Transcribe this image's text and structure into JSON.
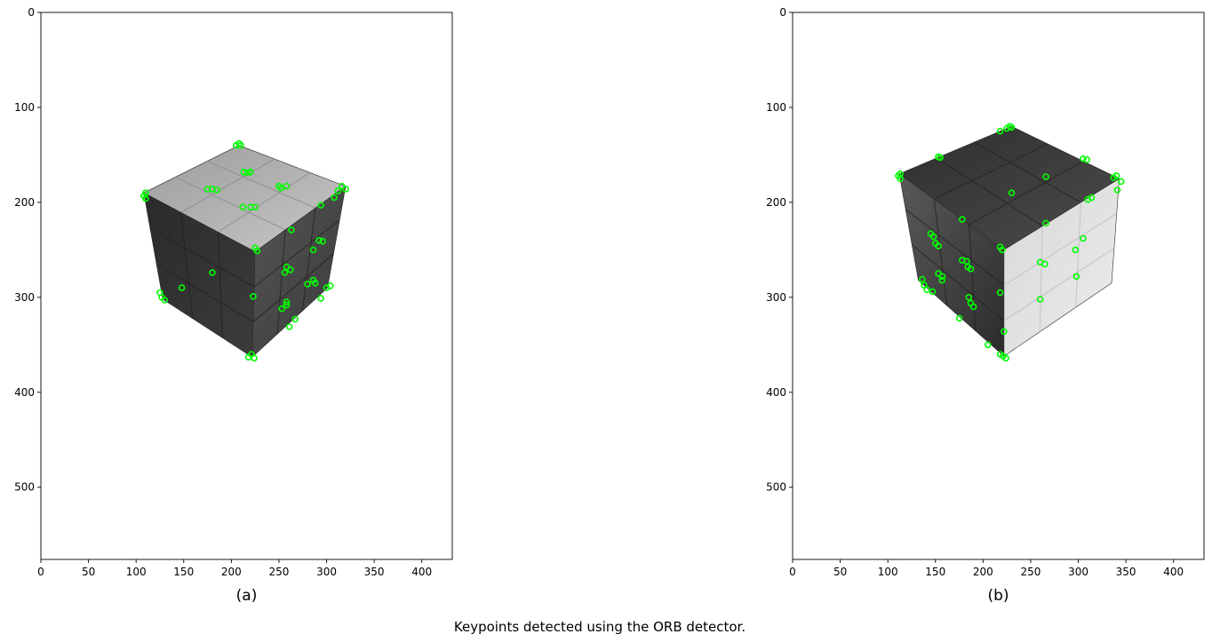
{
  "figure": {
    "caption": "Keypoints detected using the ORB detector.",
    "colors": {
      "keypoint": "#00ff00",
      "cube_light": "#b4b4b4",
      "cube_dark": "#3a3a3a",
      "cube_mid": "#4a4a4a",
      "background": "#ffffff",
      "axis": "#000000"
    },
    "panels": [
      {
        "label": "(a)",
        "x_ticks": [
          0,
          50,
          100,
          150,
          200,
          250,
          300,
          350,
          400
        ],
        "y_ticks": [
          0,
          100,
          200,
          300,
          400,
          500
        ],
        "x_range": [
          0,
          432
        ],
        "y_range": [
          576,
          0
        ],
        "cube": {
          "top_face": [
            [
              208,
              140
            ],
            [
              320,
              183
            ],
            [
              225,
              252
            ],
            [
              108,
              190
            ]
          ],
          "left_face": [
            [
              108,
              190
            ],
            [
              225,
              252
            ],
            [
              222,
              363
            ],
            [
              128,
              302
            ]
          ],
          "right_face": [
            [
              225,
              252
            ],
            [
              320,
              183
            ],
            [
              301,
              290
            ],
            [
              222,
              363
            ]
          ]
        },
        "keypoints": [
          [
            205,
            140
          ],
          [
            210,
            140
          ],
          [
            208,
            138
          ],
          [
            213,
            168
          ],
          [
            220,
            168
          ],
          [
            217,
            169
          ],
          [
            175,
            186
          ],
          [
            185,
            187
          ],
          [
            180,
            186
          ],
          [
            212,
            205
          ],
          [
            220,
            205
          ],
          [
            225,
            205
          ],
          [
            252,
            185
          ],
          [
            258,
            183
          ],
          [
            250,
            183
          ],
          [
            316,
            183
          ],
          [
            320,
            186
          ],
          [
            312,
            188
          ],
          [
            308,
            195
          ],
          [
            294,
            203
          ],
          [
            110,
            190
          ],
          [
            110,
            196
          ],
          [
            108,
            193
          ],
          [
            225,
            248
          ],
          [
            227,
            251
          ],
          [
            263,
            229
          ],
          [
            292,
            240
          ],
          [
            296,
            241
          ],
          [
            286,
            250
          ],
          [
            258,
            268
          ],
          [
            262,
            271
          ],
          [
            256,
            274
          ],
          [
            148,
            290
          ],
          [
            180,
            274
          ],
          [
            127,
            300
          ],
          [
            130,
            303
          ],
          [
            125,
            295
          ],
          [
            286,
            282
          ],
          [
            288,
            285
          ],
          [
            280,
            286
          ],
          [
            223,
            299
          ],
          [
            300,
            290
          ],
          [
            304,
            288
          ],
          [
            258,
            305
          ],
          [
            258,
            308
          ],
          [
            253,
            312
          ],
          [
            294,
            301
          ],
          [
            267,
            323
          ],
          [
            261,
            331
          ],
          [
            218,
            363
          ],
          [
            224,
            364
          ],
          [
            221,
            360
          ]
        ]
      },
      {
        "label": "(b)",
        "x_ticks": [
          0,
          50,
          100,
          150,
          200,
          250,
          300,
          350,
          400
        ],
        "y_ticks": [
          0,
          100,
          200,
          300,
          400,
          500
        ],
        "x_range": [
          0,
          432
        ],
        "y_range": [
          576,
          0
        ],
        "cube": {
          "top_face": [
            [
              230,
              120
            ],
            [
              343,
              175
            ],
            [
              222,
              250
            ],
            [
              112,
              170
            ]
          ],
          "left_face": [
            [
              112,
              170
            ],
            [
              222,
              250
            ],
            [
              222,
              362
            ],
            [
              132,
              282
            ]
          ],
          "right_face": [
            [
              222,
              250
            ],
            [
              343,
              175
            ],
            [
              335,
              285
            ],
            [
              222,
              362
            ]
          ]
        },
        "keypoints": [
          [
            225,
            122
          ],
          [
            230,
            121
          ],
          [
            218,
            125
          ],
          [
            228,
            120
          ],
          [
            153,
            152
          ],
          [
            155,
            153
          ],
          [
            305,
            154
          ],
          [
            309,
            155
          ],
          [
            266,
            173
          ],
          [
            340,
            172
          ],
          [
            345,
            178
          ],
          [
            337,
            174
          ],
          [
            113,
            170
          ],
          [
            113,
            175
          ],
          [
            111,
            172
          ],
          [
            230,
            190
          ],
          [
            310,
            197
          ],
          [
            314,
            195
          ],
          [
            341,
            187
          ],
          [
            178,
            218
          ],
          [
            266,
            222
          ],
          [
            145,
            233
          ],
          [
            148,
            236
          ],
          [
            150,
            243
          ],
          [
            153,
            246
          ],
          [
            218,
            247
          ],
          [
            220,
            250
          ],
          [
            305,
            238
          ],
          [
            178,
            261
          ],
          [
            183,
            262
          ],
          [
            184,
            268
          ],
          [
            187,
            270
          ],
          [
            260,
            263
          ],
          [
            265,
            265
          ],
          [
            297,
            250
          ],
          [
            153,
            275
          ],
          [
            157,
            278
          ],
          [
            157,
            282
          ],
          [
            136,
            281
          ],
          [
            138,
            287
          ],
          [
            141,
            292
          ],
          [
            147,
            294
          ],
          [
            218,
            295
          ],
          [
            298,
            278
          ],
          [
            185,
            300
          ],
          [
            187,
            306
          ],
          [
            190,
            310
          ],
          [
            260,
            302
          ],
          [
            175,
            322
          ],
          [
            222,
            336
          ],
          [
            205,
            350
          ],
          [
            218,
            360
          ],
          [
            224,
            364
          ],
          [
            221,
            362
          ]
        ]
      }
    ]
  }
}
